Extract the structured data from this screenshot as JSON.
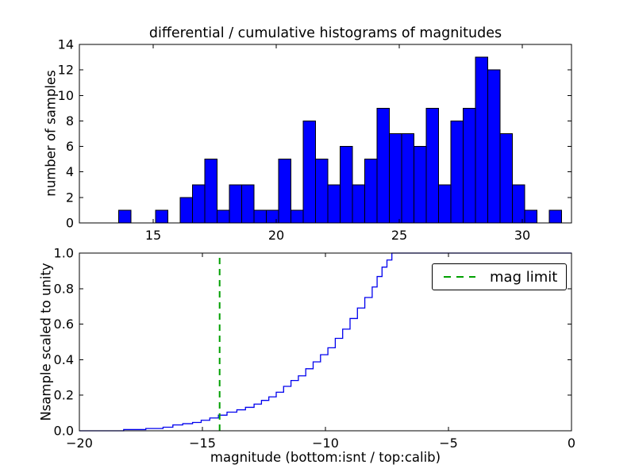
{
  "title": "differential / cumulative histograms of magnitudes",
  "colors": {
    "background": "#ffffff",
    "axis": "#000000",
    "bar_fill": "#0000ff",
    "bar_edge": "#000000",
    "step_line": "#0000ee",
    "mag_limit_line": "#00a000",
    "text": "#000000"
  },
  "chart_data": [
    {
      "type": "bar",
      "name": "differential-histogram",
      "ylabel": "number of samples",
      "xlim": [
        12,
        32
      ],
      "ylim": [
        0,
        14
      ],
      "xticks": [
        15,
        20,
        25,
        30
      ],
      "xtick_labels": [
        "15",
        "20",
        "25",
        "30"
      ],
      "yticks": [
        0,
        2,
        4,
        6,
        8,
        10,
        12,
        14
      ],
      "ytick_labels": [
        "0",
        "2",
        "4",
        "6",
        "8",
        "10",
        "12",
        "14"
      ],
      "grid": false,
      "bin_start": 13.6,
      "bin_width": 0.5,
      "counts": [
        1,
        0,
        0,
        1,
        0,
        2,
        3,
        5,
        1,
        3,
        3,
        1,
        1,
        5,
        1,
        8,
        5,
        3,
        6,
        3,
        5,
        9,
        7,
        7,
        6,
        9,
        3,
        8,
        9,
        13,
        12,
        7,
        3,
        1,
        0,
        1
      ]
    },
    {
      "type": "step",
      "name": "cumulative-histogram",
      "ylabel": "Nsample scaled to unity",
      "xlabel": "magnitude (bottom:isnt / top:calib)",
      "xlim": [
        -20,
        0
      ],
      "ylim": [
        0.0,
        1.0
      ],
      "xticks": [
        -20,
        -15,
        -10,
        -5,
        0
      ],
      "xtick_labels": [
        "−20",
        "−15",
        "−10",
        "−5",
        "0"
      ],
      "yticks": [
        0.0,
        0.2,
        0.4,
        0.6,
        0.8,
        1.0
      ],
      "ytick_labels": [
        "0.0",
        "0.2",
        "0.4",
        "0.6",
        "0.8",
        "1.0"
      ],
      "grid": false,
      "start": [
        -20,
        0
      ],
      "steps": [
        [
          -18.2,
          0.007
        ],
        [
          -17.3,
          0.013
        ],
        [
          -16.6,
          0.02
        ],
        [
          -16.2,
          0.033
        ],
        [
          -15.8,
          0.04
        ],
        [
          -15.4,
          0.047
        ],
        [
          -15.05,
          0.059
        ],
        [
          -14.7,
          0.072
        ],
        [
          -14.35,
          0.088
        ],
        [
          -14.0,
          0.105
        ],
        [
          -13.6,
          0.118
        ],
        [
          -13.25,
          0.132
        ],
        [
          -12.9,
          0.15
        ],
        [
          -12.6,
          0.171
        ],
        [
          -12.3,
          0.191
        ],
        [
          -12.0,
          0.217
        ],
        [
          -11.7,
          0.25
        ],
        [
          -11.4,
          0.283
        ],
        [
          -11.1,
          0.309
        ],
        [
          -10.8,
          0.349
        ],
        [
          -10.5,
          0.388
        ],
        [
          -10.2,
          0.428
        ],
        [
          -9.9,
          0.467
        ],
        [
          -9.6,
          0.52
        ],
        [
          -9.3,
          0.572
        ],
        [
          -9.0,
          0.632
        ],
        [
          -8.7,
          0.691
        ],
        [
          -8.4,
          0.75
        ],
        [
          -8.1,
          0.809
        ],
        [
          -7.9,
          0.868
        ],
        [
          -7.7,
          0.921
        ],
        [
          -7.5,
          0.961
        ],
        [
          -7.3,
          1.0
        ]
      ],
      "end_x": 0,
      "mag_limit": {
        "x": -14.3,
        "label": "mag limit"
      },
      "legend": {
        "label": "mag limit",
        "position": "upper right"
      }
    }
  ]
}
